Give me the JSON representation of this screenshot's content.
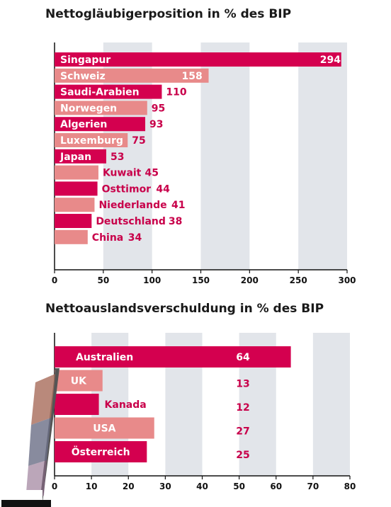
{
  "colors": {
    "dark_bar": "#d4004f",
    "light_bar": "#e88a8a",
    "dark_text": "#c8004a",
    "band": "#e2e5ea",
    "axis": "#111111"
  },
  "chart_data": [
    {
      "type": "bar",
      "orientation": "horizontal",
      "title": "Nettogläubigerposition in % des BIP",
      "categories": [
        "Singapur",
        "Schweiz",
        "Saudi-Arabien",
        "Norwegen",
        "Algerien",
        "Luxemburg",
        "Japan",
        "Kuwait",
        "Osttimor",
        "Niederlande",
        "Deutschland",
        "China"
      ],
      "values": [
        294,
        158,
        110,
        95,
        93,
        75,
        53,
        45,
        44,
        41,
        38,
        34
      ],
      "shades": [
        "dark",
        "light",
        "dark",
        "light",
        "dark",
        "light",
        "dark",
        "light",
        "dark",
        "light",
        "dark",
        "light"
      ],
      "xlim": [
        0,
        300
      ],
      "xticks": [
        0,
        50,
        100,
        150,
        200,
        250,
        300
      ]
    },
    {
      "type": "bar",
      "orientation": "horizontal",
      "title": "Nettoauslandsverschuldung in % des BIP",
      "categories": [
        "Australien",
        "UK",
        "Kanada",
        "USA",
        "Österreich"
      ],
      "values": [
        64,
        13,
        12,
        27,
        25
      ],
      "shades": [
        "dark",
        "light",
        "dark",
        "light",
        "dark"
      ],
      "xlim": [
        0,
        80
      ],
      "xticks": [
        0,
        10,
        20,
        30,
        40,
        50,
        60,
        70,
        80
      ]
    }
  ]
}
